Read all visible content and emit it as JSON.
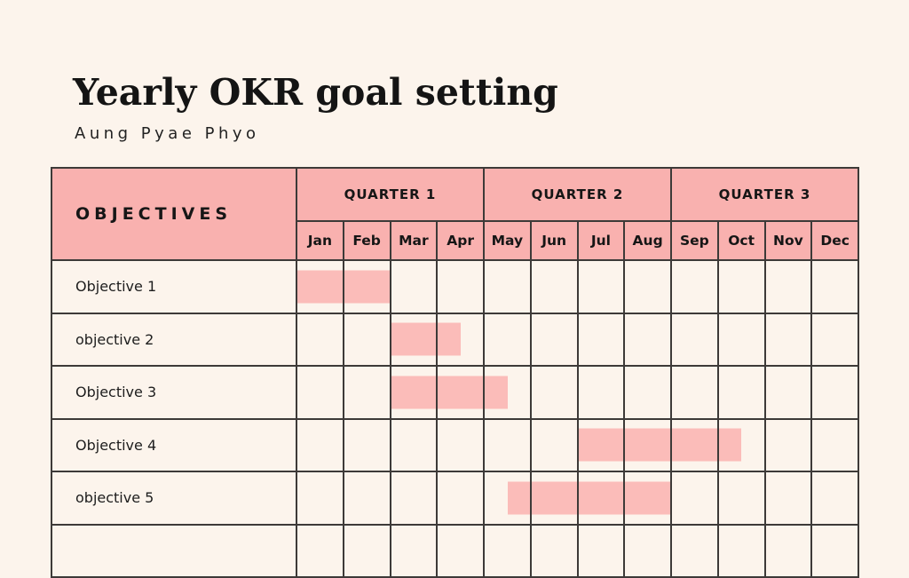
{
  "page": {
    "title": "Yearly OKR goal setting",
    "subtitle": "Aung Pyae Phyo"
  },
  "colors": {
    "background": "#FCF4EC",
    "header_fill": "#F9B1AF",
    "bar_fill": "#FBBCB9",
    "grid_line": "#3D3A38",
    "text": "#1D1D1D"
  },
  "table": {
    "objectives_header": "OBJECTIVES",
    "quarters": [
      "QUARTER 1",
      "QUARTER 2",
      "QUARTER 3"
    ],
    "months": [
      "Jan",
      "Feb",
      "Mar",
      "Apr",
      "May",
      "Jun",
      "Jul",
      "Aug",
      "Sep",
      "Oct",
      "Nov",
      "Dec"
    ]
  },
  "chart_data": {
    "type": "gantt",
    "title": "Yearly OKR goal setting",
    "subtitle": "Aung Pyae Phyo",
    "time_axis": {
      "unit": "month",
      "labels": [
        "Jan",
        "Feb",
        "Mar",
        "Apr",
        "May",
        "Jun",
        "Jul",
        "Aug",
        "Sep",
        "Oct",
        "Nov",
        "Dec"
      ],
      "groups": [
        {
          "label": "QUARTER 1",
          "months": [
            "Jan",
            "Feb",
            "Mar",
            "Apr"
          ]
        },
        {
          "label": "QUARTER 2",
          "months": [
            "May",
            "Jun",
            "Jul",
            "Aug"
          ]
        },
        {
          "label": "QUARTER 3",
          "months": [
            "Sep",
            "Oct",
            "Nov",
            "Dec"
          ]
        }
      ]
    },
    "tasks": [
      {
        "label": "Objective 1",
        "start_month_index": 0,
        "end_month_index": 2,
        "span_text": "Jan to end of Feb"
      },
      {
        "label": "objective 2",
        "start_month_index": 2,
        "end_month_index": 3.5,
        "span_text": "Mar to mid Apr"
      },
      {
        "label": "Objective 3",
        "start_month_index": 2,
        "end_month_index": 4.5,
        "span_text": "Mar to mid May"
      },
      {
        "label": "Objective 4",
        "start_month_index": 6,
        "end_month_index": 9.5,
        "span_text": "Jul to mid Oct"
      },
      {
        "label": "objective 5",
        "start_month_index": 4.5,
        "end_month_index": 8,
        "span_text": "mid May to end of Aug"
      },
      {
        "label": "",
        "start_month_index": null,
        "end_month_index": null,
        "span_text": ""
      }
    ]
  }
}
